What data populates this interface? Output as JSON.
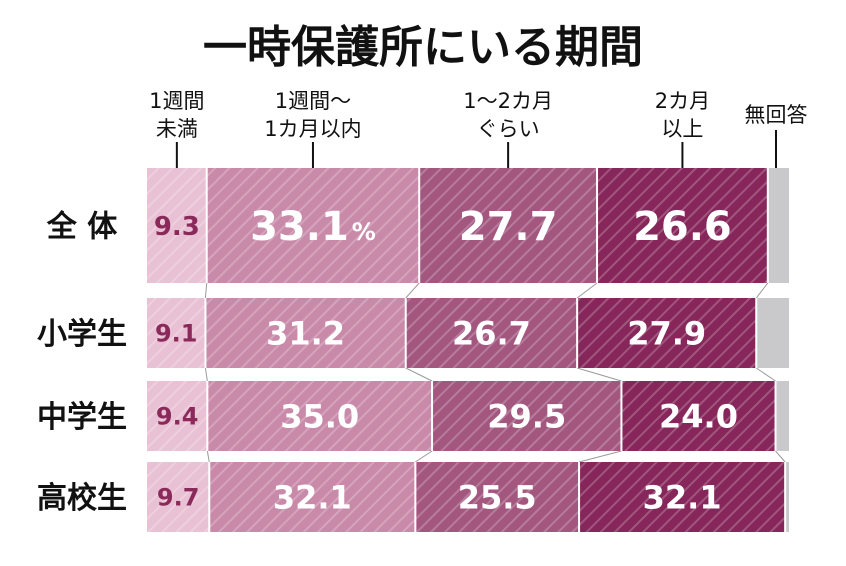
{
  "chart_data": {
    "type": "bar",
    "orientation": "horizontal-stacked",
    "title": "一時保護所にいる期間",
    "unit_label": "%",
    "categories": [
      "全 体",
      "小学生",
      "中学生",
      "高校生"
    ],
    "segment_headers": [
      [
        "1週間",
        "未満"
      ],
      [
        "1週間～",
        "1カ月以内"
      ],
      [
        "1～2カ月",
        "ぐらい"
      ],
      [
        "2カ月",
        "以上"
      ],
      [
        "無回答"
      ]
    ],
    "series": [
      {
        "name": "1週間未満",
        "values": [
          9.3,
          9.1,
          9.4,
          9.7
        ],
        "labels": [
          "9.3",
          "9.1",
          "9.4",
          "9.7"
        ]
      },
      {
        "name": "1週間～1カ月以内",
        "values": [
          33.1,
          31.2,
          35.0,
          32.1
        ],
        "labels": [
          "33.1",
          "31.2",
          "35.0",
          "32.1"
        ]
      },
      {
        "name": "1～2カ月ぐらい",
        "values": [
          27.7,
          26.7,
          29.5,
          25.5
        ],
        "labels": [
          "27.7",
          "26.7",
          "29.5",
          "25.5"
        ]
      },
      {
        "name": "2カ月以上",
        "values": [
          26.6,
          27.9,
          24.0,
          32.1
        ],
        "labels": [
          "26.6",
          "27.9",
          "24.0",
          "32.1"
        ]
      },
      {
        "name": "無回答",
        "values": [
          3.3,
          5.1,
          2.1,
          0.6
        ],
        "labels": [
          "",
          "",
          "",
          ""
        ]
      }
    ],
    "colors": [
      "#e9c1d4",
      "#c98aa9",
      "#a3577f",
      "#86265a",
      "#c9c9cb"
    ]
  }
}
